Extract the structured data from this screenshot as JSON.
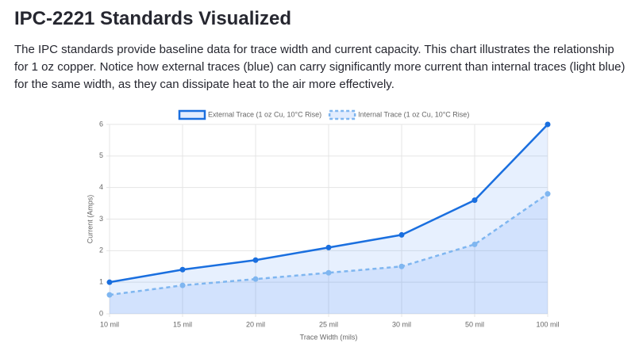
{
  "header": {
    "title": "IPC-2221 Standards Visualized",
    "description": "The IPC standards provide baseline data for trace width and current capacity. This chart illustrates the relationship for 1 oz copper. Notice how external traces (blue) can carry significantly more current than internal traces (light blue) for the same width, as they can dissipate heat to the air more effectively."
  },
  "chart_data": {
    "type": "line",
    "x_label": "Trace Width (mils)",
    "y_label": "Current (Amps)",
    "categories": [
      "10 mil",
      "15 mil",
      "20 mil",
      "25 mil",
      "30 mil",
      "50 mil",
      "100 mil"
    ],
    "series": [
      {
        "name": "External Trace (1 oz Cu, 10°C Rise)",
        "color": "#1a6fdf",
        "dashed": false,
        "values": [
          1.0,
          1.4,
          1.7,
          2.1,
          2.5,
          3.6,
          6.0
        ]
      },
      {
        "name": "Internal Trace (1 oz Cu, 10°C Rise)",
        "color": "#7fb6f0",
        "dashed": true,
        "values": [
          0.6,
          0.9,
          1.1,
          1.3,
          1.5,
          2.2,
          3.8
        ]
      }
    ],
    "ylim": [
      0,
      6
    ],
    "yticks": [
      0,
      1,
      2,
      3,
      4,
      5,
      6
    ],
    "grid": true,
    "fill": true,
    "legend": "top"
  }
}
